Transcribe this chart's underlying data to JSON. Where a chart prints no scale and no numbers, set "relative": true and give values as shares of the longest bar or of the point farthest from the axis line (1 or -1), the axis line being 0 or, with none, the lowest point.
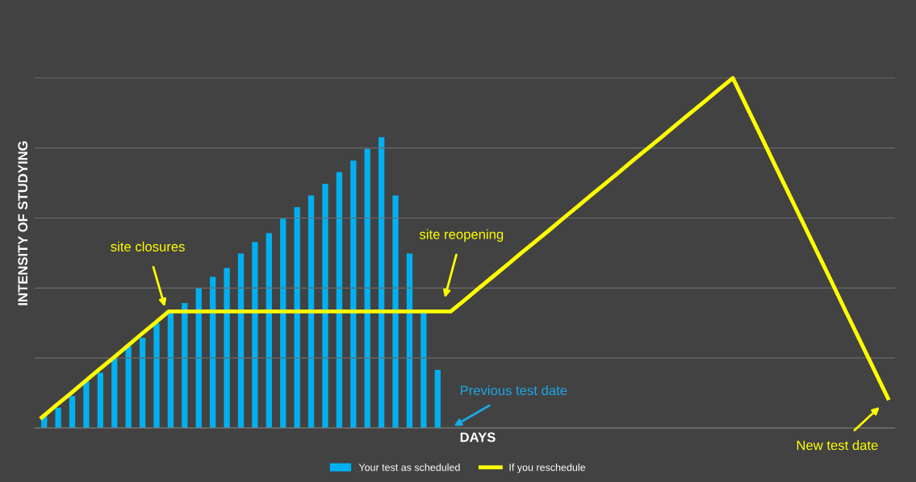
{
  "chart_data": [
    {
      "type": "bar",
      "relative": true,
      "legend": "bottom",
      "categories": [
        null,
        null,
        null,
        null,
        null,
        null,
        null,
        null,
        null,
        null,
        null,
        null,
        null,
        null,
        null,
        null,
        null,
        null,
        null,
        null,
        null,
        null,
        null,
        null,
        null,
        null,
        null,
        null,
        null
      ],
      "series": [
        {
          "name": "Your test as scheduled",
          "color": "#00b0f0",
          "values": [
            0.04,
            0.07,
            0.11,
            0.16,
            0.19,
            0.24,
            0.28,
            0.31,
            0.36,
            0.4,
            0.43,
            0.48,
            0.52,
            0.55,
            0.6,
            0.64,
            0.67,
            0.72,
            0.76,
            0.8,
            0.84,
            0.88,
            0.92,
            0.96,
            1,
            0.8,
            0.6,
            0.4,
            0.2
          ]
        }
      ]
    },
    {
      "type": "line",
      "relative": true,
      "legend": "bottom",
      "grid": "y",
      "xlabel": "DAYS",
      "ylabel": "INTENSITY OF STUDYING",
      "categories": [
        null,
        null,
        null,
        null,
        null,
        null,
        null,
        null,
        null,
        null,
        null,
        null,
        null,
        null,
        null,
        null,
        null,
        null,
        null,
        null,
        null,
        null,
        null,
        null,
        null,
        null,
        null,
        null,
        null,
        null,
        null,
        null,
        null,
        null,
        null,
        null,
        null,
        null,
        null,
        null,
        null,
        null,
        null,
        null,
        null,
        null,
        null,
        null,
        null,
        null,
        null,
        null,
        null,
        null,
        null,
        null,
        null,
        null,
        null,
        null,
        null
      ],
      "series": [
        {
          "name": "If you reschedule",
          "color": "#ffff00",
          "values": [
            0.03,
            0.064,
            0.097,
            0.131,
            0.165,
            0.198,
            0.232,
            0.266,
            0.299,
            0.333,
            0.333,
            0.333,
            0.333,
            0.333,
            0.333,
            0.333,
            0.333,
            0.333,
            0.333,
            0.333,
            0.333,
            0.333,
            0.333,
            0.333,
            0.333,
            0.333,
            0.333,
            0.333,
            0.333,
            0.333,
            0.366,
            0.4,
            0.433,
            0.466,
            0.5,
            0.533,
            0.566,
            0.6,
            0.633,
            0.667,
            0.7,
            0.733,
            0.767,
            0.8,
            0.833,
            0.867,
            0.9,
            0.933,
            0.967,
            1,
            0.917,
            0.834,
            0.75,
            0.667,
            0.584,
            0.501,
            0.418,
            0.334,
            0.251,
            0.168,
            0.085
          ]
        }
      ],
      "annotations": [
        "site closures",
        "site reopening",
        "Previous test date",
        "New test date"
      ]
    }
  ]
}
